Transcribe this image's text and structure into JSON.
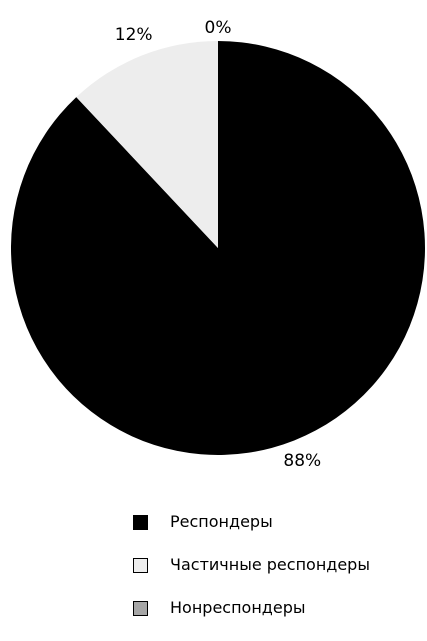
{
  "chart_data": {
    "type": "pie",
    "title": "",
    "categories": [
      "Респондеры",
      "Частичные респондеры",
      "Нонреспондеры"
    ],
    "values": [
      88,
      12,
      0
    ],
    "value_labels": [
      "88%",
      "12%",
      "0%"
    ],
    "colors": [
      "#000000",
      "#ededed",
      "#a6a6a6"
    ],
    "legend_position": "bottom"
  }
}
